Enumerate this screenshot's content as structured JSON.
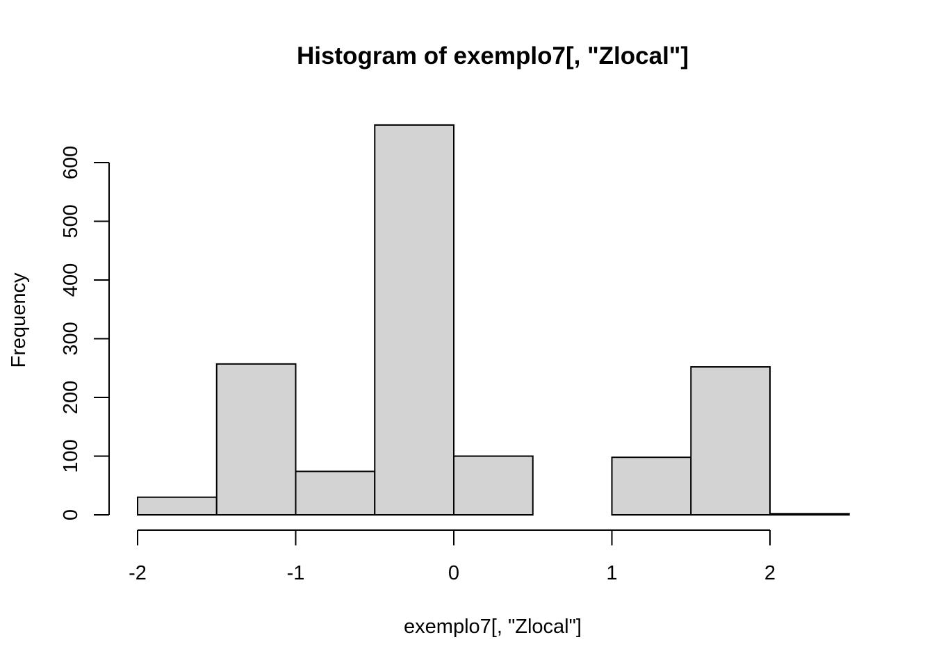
{
  "chart_data": {
    "type": "bar",
    "title": "Histogram of exemplo7[, \"Zlocal\"]",
    "xlabel": "exemplo7[, \"Zlocal\"]",
    "ylabel": "Frequency",
    "bins": [
      {
        "x0": -2.0,
        "x1": -1.5,
        "count": 30
      },
      {
        "x0": -1.5,
        "x1": -1.0,
        "count": 257
      },
      {
        "x0": -1.0,
        "x1": -0.5,
        "count": 74
      },
      {
        "x0": -0.5,
        "x1": 0.0,
        "count": 664
      },
      {
        "x0": 0.0,
        "x1": 0.5,
        "count": 100
      },
      {
        "x0": 0.5,
        "x1": 1.0,
        "count": 0
      },
      {
        "x0": 1.0,
        "x1": 1.5,
        "count": 98
      },
      {
        "x0": 1.5,
        "x1": 2.0,
        "count": 252
      },
      {
        "x0": 2.0,
        "x1": 2.5,
        "count": 2
      }
    ],
    "xlim": [
      -2,
      2.5
    ],
    "ylim": [
      0,
      664
    ],
    "xticks": [
      -2,
      -1,
      0,
      1,
      2
    ],
    "xtick_labels": [
      "-2",
      "-1",
      "0",
      "1",
      "2"
    ],
    "yticks": [
      0,
      100,
      200,
      300,
      400,
      500,
      600
    ],
    "ytick_labels": [
      "0",
      "100",
      "200",
      "300",
      "400",
      "500",
      "600"
    ],
    "bar_fill": "#d3d3d3",
    "bar_stroke": "#000000",
    "grid": false
  }
}
